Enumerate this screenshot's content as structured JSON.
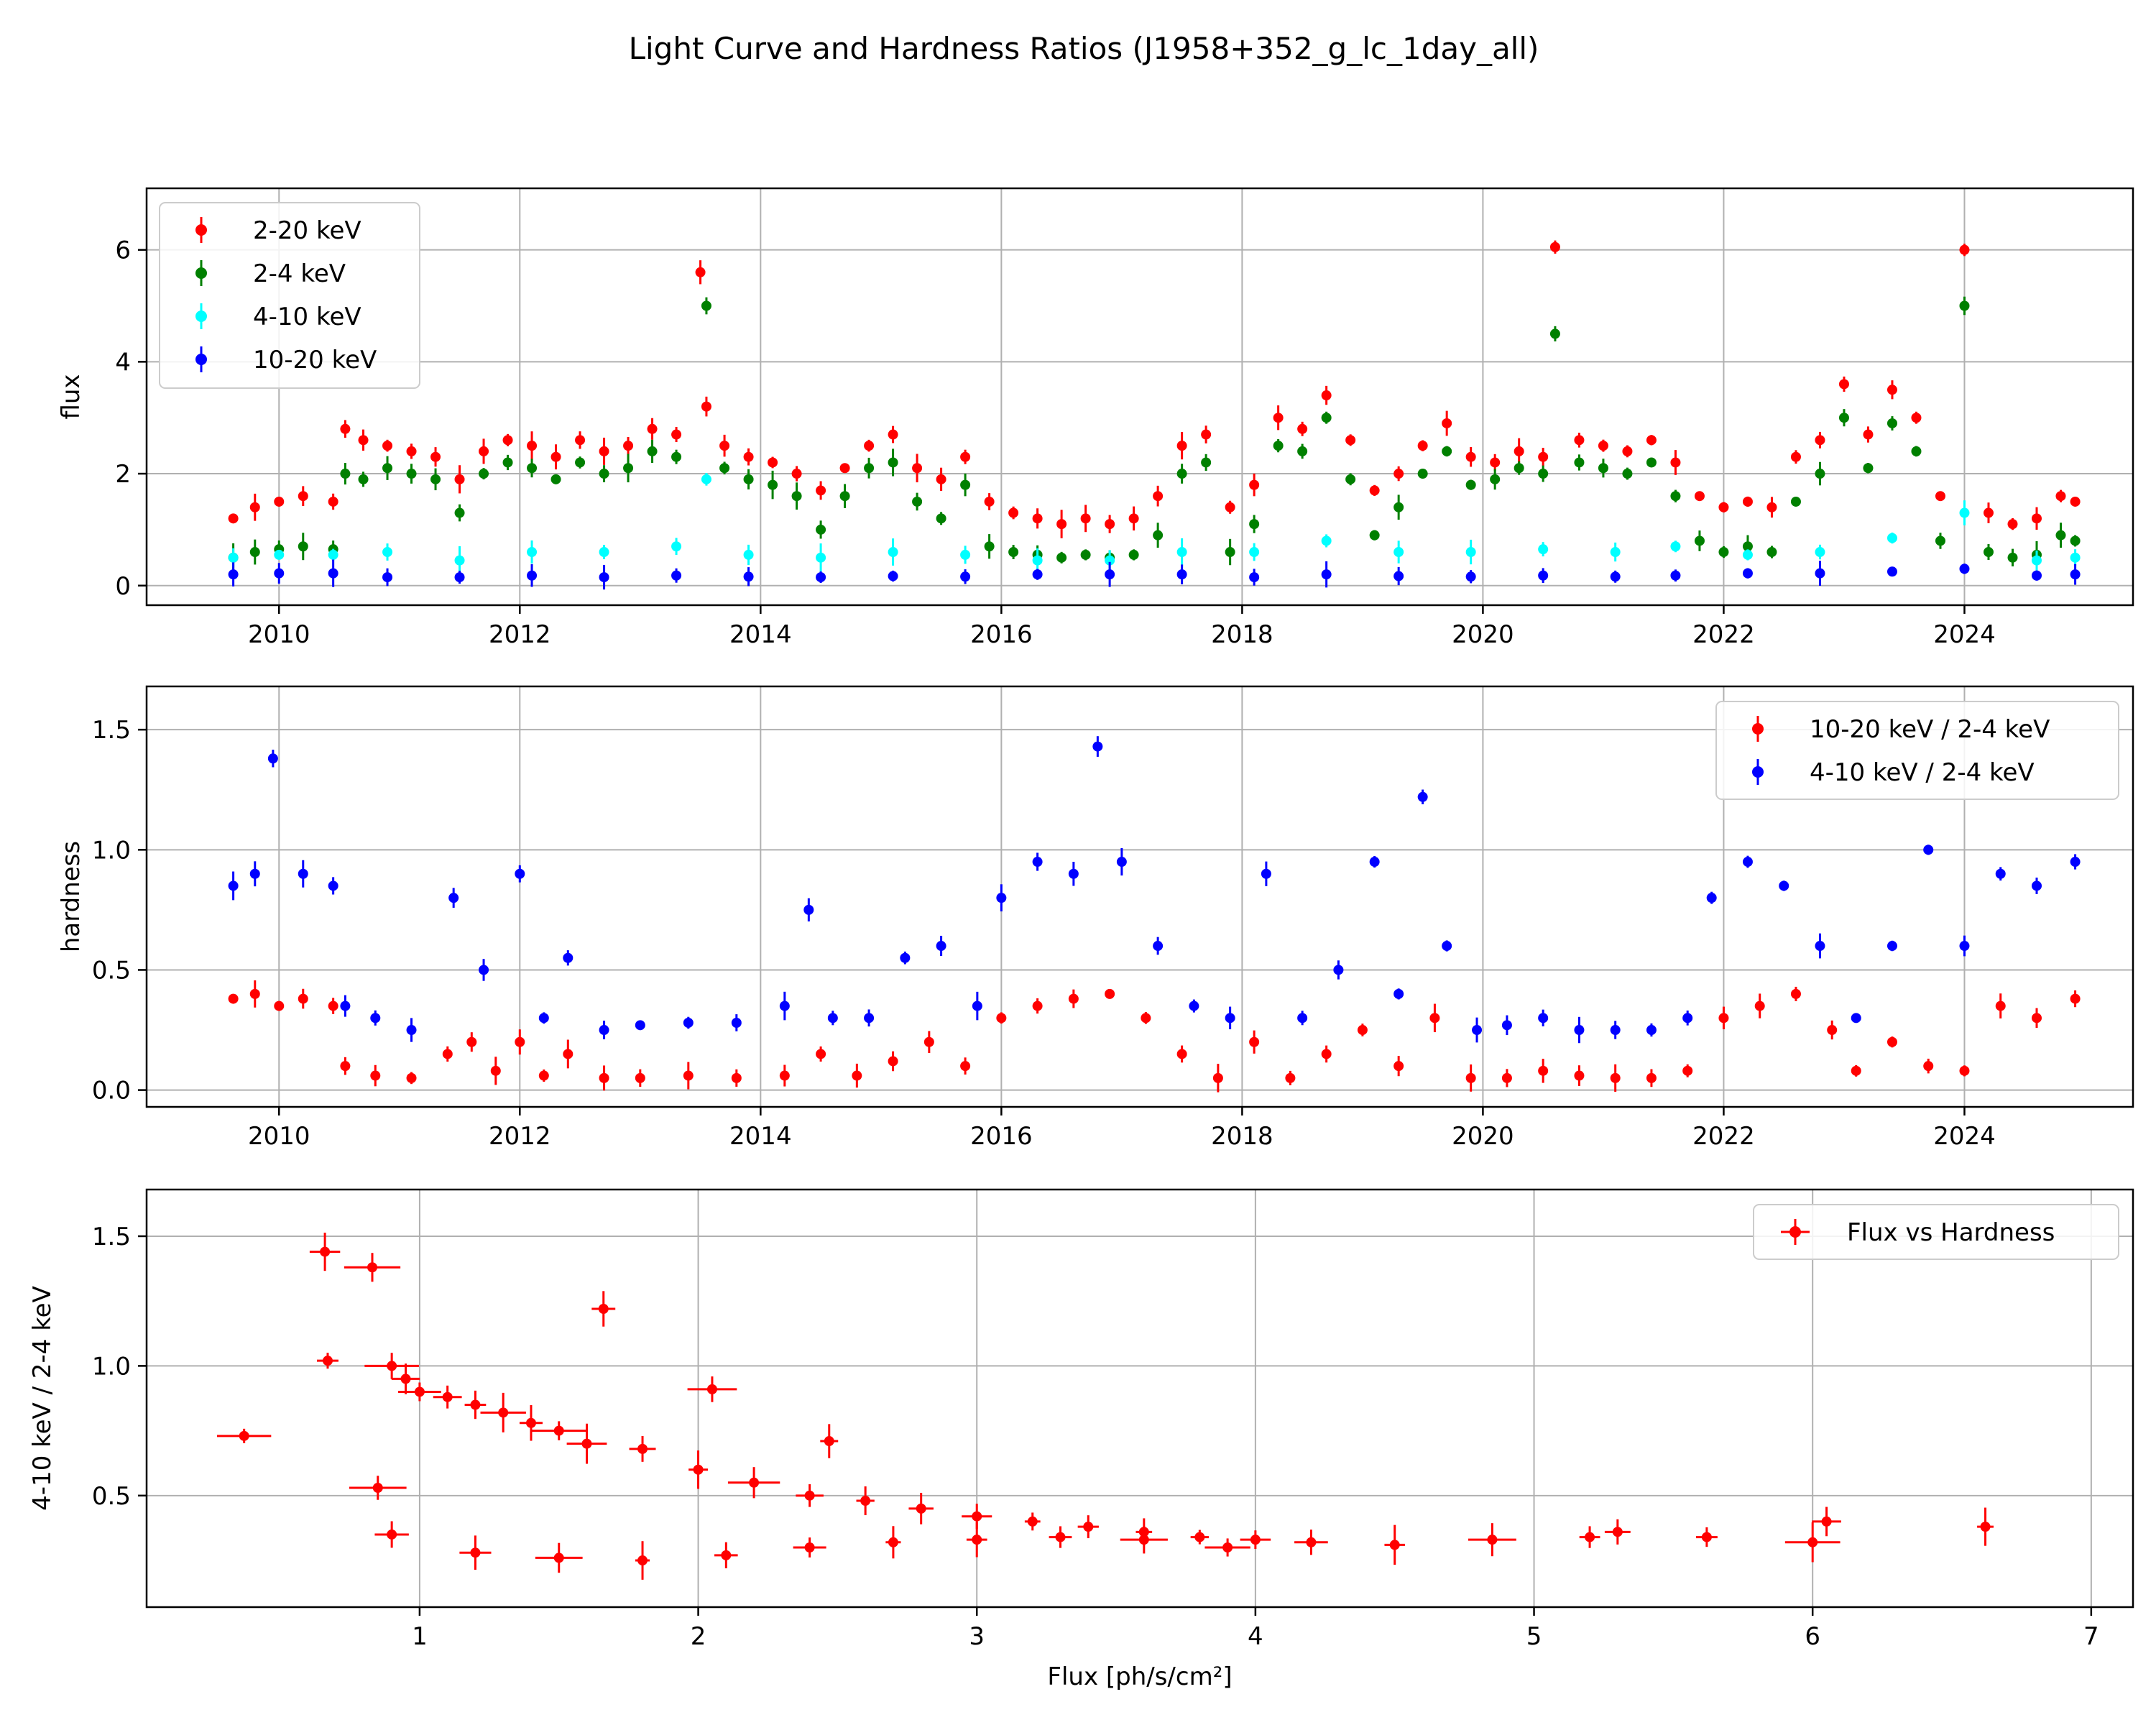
{
  "figure": {
    "title": "Light Curve and Hardness Ratios (J1958+352_g_lc_1day_all)"
  },
  "colors": {
    "red": "#ff0000",
    "green": "#008000",
    "cyan": "#00ffff",
    "blue": "#0000ff",
    "grid": "#b0b0b0"
  },
  "chart_data": [
    {
      "type": "scatter",
      "panel": "light-curve",
      "title": "",
      "xlabel": "",
      "ylabel": "flux",
      "xlim": [
        2008.9,
        2025.4
      ],
      "ylim": [
        -0.35,
        7.1
      ],
      "x_ticks": [
        2010,
        2012,
        2014,
        2016,
        2018,
        2020,
        2022,
        2024
      ],
      "y_ticks": [
        0,
        2,
        4,
        6
      ],
      "grid": true,
      "legend_position": "top-left",
      "series": [
        {
          "name": "2-20 keV",
          "color": "#ff0000",
          "x": [
            2009.62,
            2009.8,
            2010.0,
            2010.2,
            2010.45,
            2010.55,
            2010.7,
            2010.9,
            2011.1,
            2011.3,
            2011.5,
            2011.7,
            2011.9,
            2012.1,
            2012.3,
            2012.5,
            2012.7,
            2012.9,
            2013.1,
            2013.3,
            2013.5,
            2013.55,
            2013.7,
            2013.9,
            2014.1,
            2014.3,
            2014.5,
            2014.7,
            2014.9,
            2015.1,
            2015.3,
            2015.5,
            2015.7,
            2015.9,
            2016.1,
            2016.3,
            2016.5,
            2016.7,
            2016.9,
            2017.1,
            2017.3,
            2017.5,
            2017.7,
            2017.9,
            2018.1,
            2018.3,
            2018.5,
            2018.7,
            2018.9,
            2019.1,
            2019.3,
            2019.5,
            2019.7,
            2019.9,
            2020.1,
            2020.3,
            2020.5,
            2020.6,
            2020.8,
            2021.0,
            2021.2,
            2021.4,
            2021.6,
            2021.8,
            2022.0,
            2022.2,
            2022.4,
            2022.6,
            2022.8,
            2023.0,
            2023.2,
            2023.4,
            2023.6,
            2023.8,
            2024.0,
            2024.2,
            2024.4,
            2024.6,
            2024.8,
            2024.92
          ],
          "values": [
            1.2,
            1.4,
            1.5,
            1.6,
            1.5,
            2.8,
            2.6,
            2.5,
            2.4,
            2.3,
            1.9,
            2.4,
            2.6,
            2.5,
            2.3,
            2.6,
            2.4,
            2.5,
            2.8,
            2.7,
            5.6,
            3.2,
            2.5,
            2.3,
            2.2,
            2.0,
            1.7,
            2.1,
            2.5,
            2.7,
            2.1,
            1.9,
            2.3,
            1.5,
            1.3,
            1.2,
            1.1,
            1.2,
            1.1,
            1.2,
            1.6,
            2.5,
            2.7,
            1.4,
            1.8,
            3.0,
            2.8,
            3.4,
            2.6,
            1.7,
            2.0,
            2.5,
            2.9,
            2.3,
            2.2,
            2.4,
            2.3,
            6.05,
            2.6,
            2.5,
            2.4,
            2.6,
            2.2,
            1.6,
            1.4,
            1.5,
            1.4,
            2.3,
            2.6,
            3.6,
            2.7,
            3.5,
            3.0,
            1.6,
            6.0,
            1.3,
            1.1,
            1.2,
            1.6,
            1.5
          ]
        },
        {
          "name": "2-4 keV",
          "color": "#008000",
          "x": [
            2009.62,
            2009.8,
            2010.0,
            2010.2,
            2010.45,
            2010.55,
            2010.7,
            2010.9,
            2011.1,
            2011.3,
            2011.5,
            2011.7,
            2011.9,
            2012.1,
            2012.3,
            2012.5,
            2012.7,
            2012.9,
            2013.1,
            2013.3,
            2013.55,
            2013.7,
            2013.9,
            2014.1,
            2014.3,
            2014.5,
            2014.7,
            2014.9,
            2015.1,
            2015.3,
            2015.5,
            2015.7,
            2015.9,
            2016.1,
            2016.3,
            2016.5,
            2016.7,
            2016.9,
            2017.1,
            2017.3,
            2017.5,
            2017.7,
            2017.9,
            2018.1,
            2018.3,
            2018.5,
            2018.7,
            2018.9,
            2019.1,
            2019.3,
            2019.5,
            2019.7,
            2019.9,
            2020.1,
            2020.3,
            2020.5,
            2020.6,
            2020.8,
            2021.0,
            2021.2,
            2021.4,
            2021.6,
            2021.8,
            2022.0,
            2022.2,
            2022.4,
            2022.6,
            2022.8,
            2023.0,
            2023.2,
            2023.4,
            2023.6,
            2023.8,
            2024.0,
            2024.2,
            2024.4,
            2024.6,
            2024.8,
            2024.92
          ],
          "values": [
            0.5,
            0.6,
            0.65,
            0.7,
            0.65,
            2.0,
            1.9,
            2.1,
            2.0,
            1.9,
            1.3,
            2.0,
            2.2,
            2.1,
            1.9,
            2.2,
            2.0,
            2.1,
            2.4,
            2.3,
            5.0,
            2.1,
            1.9,
            1.8,
            1.6,
            1.0,
            1.6,
            2.1,
            2.2,
            1.5,
            1.2,
            1.8,
            0.7,
            0.6,
            0.55,
            0.5,
            0.55,
            0.5,
            0.55,
            0.9,
            2.0,
            2.2,
            0.6,
            1.1,
            2.5,
            2.4,
            3.0,
            1.9,
            0.9,
            1.4,
            2.0,
            2.4,
            1.8,
            1.9,
            2.1,
            2.0,
            4.5,
            2.2,
            2.1,
            2.0,
            2.2,
            1.6,
            0.8,
            0.6,
            0.7,
            0.6,
            1.5,
            2.0,
            3.0,
            2.1,
            2.9,
            2.4,
            0.8,
            5.0,
            0.6,
            0.5,
            0.55,
            0.9,
            0.8
          ]
        },
        {
          "name": "4-10 keV",
          "color": "#00ffff",
          "x": [
            2009.62,
            2010.0,
            2010.45,
            2010.9,
            2011.5,
            2012.1,
            2012.7,
            2013.3,
            2013.55,
            2013.9,
            2014.5,
            2015.1,
            2015.7,
            2016.3,
            2016.9,
            2017.5,
            2018.1,
            2018.7,
            2019.3,
            2019.9,
            2020.5,
            2021.1,
            2021.6,
            2022.2,
            2022.8,
            2023.4,
            2024.0,
            2024.6,
            2024.92
          ],
          "values": [
            0.5,
            0.55,
            0.55,
            0.6,
            0.45,
            0.6,
            0.6,
            0.7,
            1.9,
            0.55,
            0.5,
            0.6,
            0.55,
            0.45,
            0.45,
            0.6,
            0.6,
            0.8,
            0.6,
            0.6,
            0.65,
            0.6,
            0.7,
            0.55,
            0.6,
            0.85,
            1.3,
            0.45,
            0.5
          ]
        },
        {
          "name": "10-20 keV",
          "color": "#0000ff",
          "x": [
            2009.62,
            2010.0,
            2010.45,
            2010.9,
            2011.5,
            2012.1,
            2012.7,
            2013.3,
            2013.9,
            2014.5,
            2015.1,
            2015.7,
            2016.3,
            2016.9,
            2017.5,
            2018.1,
            2018.7,
            2019.3,
            2019.9,
            2020.5,
            2021.1,
            2021.6,
            2022.2,
            2022.8,
            2023.4,
            2024.0,
            2024.6,
            2024.92
          ],
          "values": [
            0.2,
            0.22,
            0.22,
            0.15,
            0.15,
            0.18,
            0.15,
            0.18,
            0.16,
            0.15,
            0.17,
            0.16,
            0.2,
            0.2,
            0.2,
            0.15,
            0.2,
            0.17,
            0.16,
            0.18,
            0.16,
            0.18,
            0.22,
            0.22,
            0.25,
            0.3,
            0.18,
            0.2
          ]
        }
      ]
    },
    {
      "type": "scatter",
      "panel": "hardness",
      "title": "",
      "xlabel": "",
      "ylabel": "hardness",
      "xlim": [
        2008.9,
        2025.4
      ],
      "ylim": [
        -0.07,
        1.68
      ],
      "x_ticks": [
        2010,
        2012,
        2014,
        2016,
        2018,
        2020,
        2022,
        2024
      ],
      "y_ticks": [
        0.0,
        0.5,
        1.0,
        1.5
      ],
      "grid": true,
      "legend_position": "top-right",
      "series": [
        {
          "name": "10-20 keV / 2-4 keV",
          "color": "#ff0000",
          "x": [
            2009.62,
            2009.8,
            2010.0,
            2010.2,
            2010.45,
            2010.55,
            2010.8,
            2011.1,
            2011.4,
            2011.6,
            2011.8,
            2012.0,
            2012.2,
            2012.4,
            2012.7,
            2013.0,
            2013.4,
            2013.8,
            2014.2,
            2014.5,
            2014.8,
            2015.1,
            2015.4,
            2015.7,
            2016.0,
            2016.3,
            2016.6,
            2016.9,
            2017.2,
            2017.5,
            2017.8,
            2018.1,
            2018.4,
            2018.7,
            2019.0,
            2019.3,
            2019.6,
            2019.9,
            2020.2,
            2020.5,
            2020.8,
            2021.1,
            2021.4,
            2021.7,
            2022.0,
            2022.3,
            2022.6,
            2022.9,
            2023.1,
            2023.4,
            2023.7,
            2024.0,
            2024.3,
            2024.6,
            2024.92
          ],
          "values": [
            0.38,
            0.4,
            0.35,
            0.38,
            0.35,
            0.1,
            0.06,
            0.05,
            0.15,
            0.2,
            0.08,
            0.2,
            0.06,
            0.15,
            0.05,
            0.05,
            0.06,
            0.05,
            0.06,
            0.15,
            0.06,
            0.12,
            0.2,
            0.1,
            0.3,
            0.35,
            0.38,
            0.4,
            0.3,
            0.15,
            0.05,
            0.2,
            0.05,
            0.15,
            0.25,
            0.1,
            0.3,
            0.05,
            0.05,
            0.08,
            0.06,
            0.05,
            0.05,
            0.08,
            0.3,
            0.35,
            0.4,
            0.25,
            0.08,
            0.2,
            0.1,
            0.08,
            0.35,
            0.3,
            0.38
          ]
        },
        {
          "name": "4-10 keV / 2-4 keV",
          "color": "#0000ff",
          "x": [
            2009.62,
            2009.8,
            2009.95,
            2010.2,
            2010.45,
            2010.55,
            2010.8,
            2011.1,
            2011.45,
            2011.7,
            2012.0,
            2012.2,
            2012.4,
            2012.7,
            2013.0,
            2013.4,
            2013.8,
            2014.2,
            2014.4,
            2014.6,
            2014.9,
            2015.2,
            2015.5,
            2015.8,
            2016.0,
            2016.3,
            2016.6,
            2016.8,
            2017.0,
            2017.3,
            2017.6,
            2017.9,
            2018.2,
            2018.5,
            2018.8,
            2019.1,
            2019.3,
            2019.5,
            2019.7,
            2019.95,
            2020.2,
            2020.5,
            2020.8,
            2021.1,
            2021.4,
            2021.7,
            2021.9,
            2022.2,
            2022.5,
            2022.8,
            2023.1,
            2023.4,
            2023.7,
            2024.0,
            2024.3,
            2024.6,
            2024.92
          ],
          "values": [
            0.85,
            0.9,
            1.38,
            0.9,
            0.85,
            0.35,
            0.3,
            0.25,
            0.8,
            0.5,
            0.9,
            0.3,
            0.55,
            0.25,
            0.27,
            0.28,
            0.28,
            0.35,
            0.75,
            0.3,
            0.3,
            0.55,
            0.6,
            0.35,
            0.8,
            0.95,
            0.9,
            1.43,
            0.95,
            0.6,
            0.35,
            0.3,
            0.9,
            0.3,
            0.5,
            0.95,
            0.4,
            1.22,
            0.6,
            0.25,
            0.27,
            0.3,
            0.25,
            0.25,
            0.25,
            0.3,
            0.8,
            0.95,
            0.85,
            0.6,
            0.3,
            0.6,
            1.0,
            0.6,
            0.9,
            0.85,
            0.95
          ]
        }
      ]
    },
    {
      "type": "scatter",
      "panel": "flux-vs-hardness",
      "title": "",
      "xlabel": "Flux [ph/s/cm²]",
      "ylabel": "4-10 keV / 2-4 keV",
      "xlim": [
        0.02,
        7.15
      ],
      "ylim": [
        0.07,
        1.68
      ],
      "x_ticks": [
        1,
        2,
        3,
        4,
        5,
        6,
        7
      ],
      "y_ticks": [
        0.5,
        1.0,
        1.5
      ],
      "grid": true,
      "legend_position": "top-right",
      "series": [
        {
          "name": "Flux vs Hardness",
          "color": "#ff0000",
          "x": [
            0.37,
            0.66,
            0.67,
            0.83,
            0.85,
            0.9,
            0.95,
            1.0,
            1.1,
            1.2,
            1.3,
            1.4,
            1.5,
            1.6,
            1.66,
            1.8,
            2.0,
            2.05,
            2.2,
            2.4,
            2.47,
            2.6,
            2.8,
            3.0,
            3.2,
            3.4,
            3.6,
            3.8,
            4.0,
            4.2,
            4.5,
            4.85,
            5.2,
            5.3,
            5.62,
            6.05,
            6.0,
            6.62,
            0.9,
            1.2,
            1.5,
            1.8,
            2.1,
            2.4,
            2.7,
            3.0,
            3.3,
            3.6,
            3.9
          ],
          "values": [
            0.73,
            1.44,
            1.02,
            1.38,
            0.53,
            1.0,
            0.95,
            0.9,
            0.88,
            0.85,
            0.82,
            0.78,
            0.75,
            0.7,
            1.22,
            0.68,
            0.6,
            0.91,
            0.55,
            0.5,
            0.71,
            0.48,
            0.45,
            0.42,
            0.4,
            0.38,
            0.36,
            0.34,
            0.33,
            0.32,
            0.31,
            0.33,
            0.34,
            0.36,
            0.34,
            0.4,
            0.32,
            0.38,
            0.35,
            0.28,
            0.26,
            0.25,
            0.27,
            0.3,
            0.32,
            0.33,
            0.34,
            0.33,
            0.3
          ]
        }
      ]
    }
  ]
}
